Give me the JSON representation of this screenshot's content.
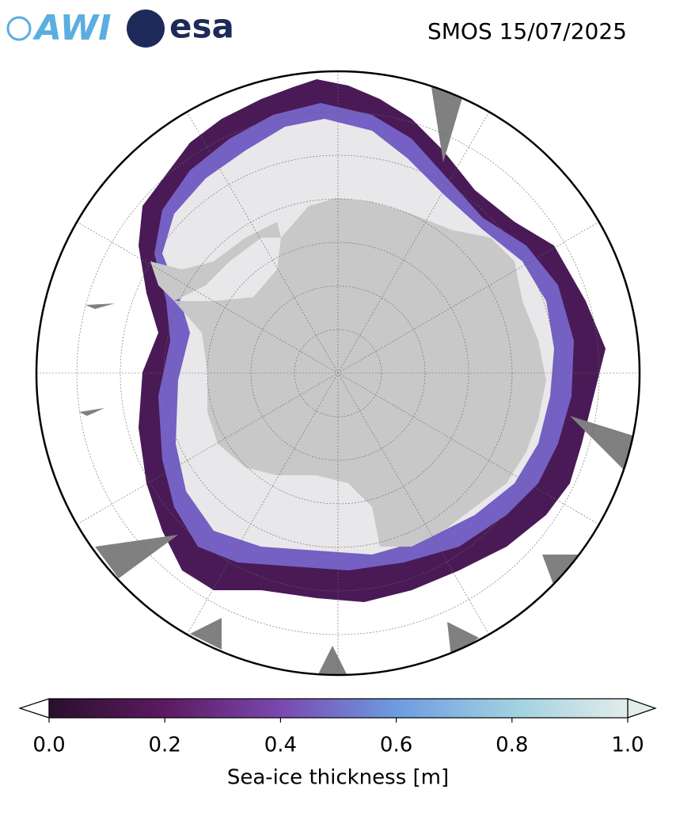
{
  "header": {
    "logos": [
      "AWI",
      "esa"
    ],
    "title": "SMOS 15/07/2025"
  },
  "colorbar": {
    "label": "Sea-ice thickness [m]",
    "lim": [
      0,
      1
    ],
    "ticks": [
      {
        "value": 0,
        "label": "0.0"
      },
      {
        "value": 0.2,
        "label": "0.2"
      },
      {
        "value": 0.4,
        "label": "0.4"
      },
      {
        "value": 0.6,
        "label": "0.6"
      },
      {
        "value": 0.8,
        "label": "0.8"
      },
      {
        "value": 1,
        "label": "1.0"
      }
    ],
    "colors": [
      "#2a0f2e",
      "#5b1a60",
      "#7a48b0",
      "#6d9be2",
      "#9fd0e0",
      "#e2eceb"
    ],
    "under_color": "#ffffff",
    "over_color": "#e2eceb"
  }
}
